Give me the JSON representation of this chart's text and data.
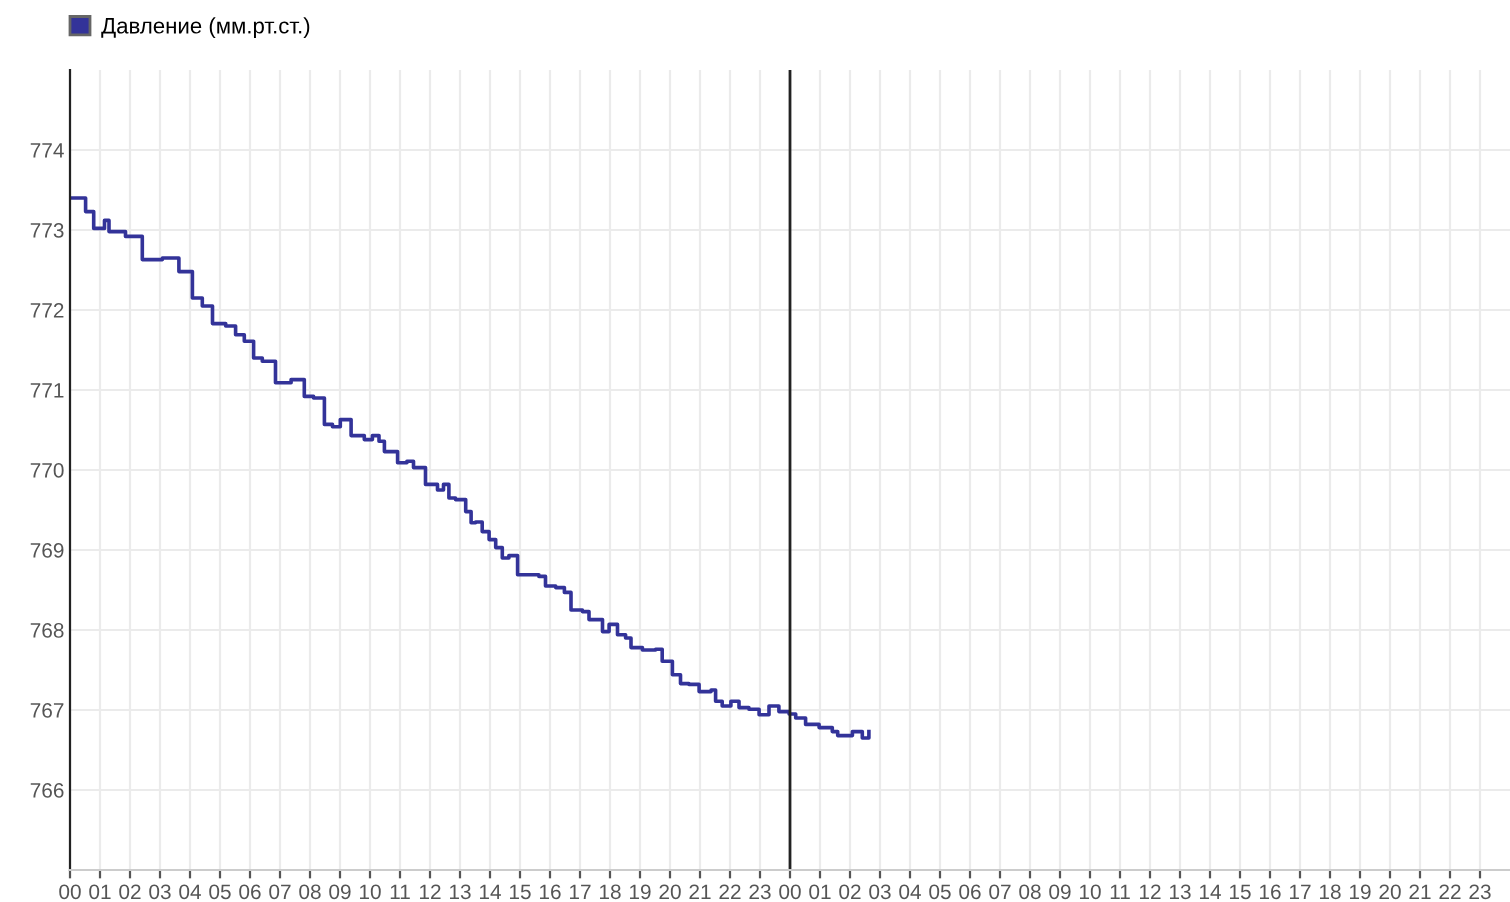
{
  "chart_data": {
    "type": "step",
    "series": [
      {
        "name": "Давление (мм.рт.ст.)",
        "color": "#333399",
        "x": [
          0.03,
          0.52,
          0.79,
          1.15,
          1.3,
          1.85,
          2.41,
          3.08,
          3.63,
          4.08,
          4.41,
          4.75,
          5.19,
          5.52,
          5.81,
          6.12,
          6.41,
          6.85,
          7.37,
          7.81,
          8.12,
          8.48,
          8.75,
          9.01,
          9.37,
          9.81,
          10.08,
          10.3,
          10.48,
          10.92,
          11.23,
          11.45,
          11.85,
          12.08,
          12.25,
          12.45,
          12.63,
          12.85,
          13.19,
          13.37,
          13.52,
          13.74,
          13.97,
          14.19,
          14.41,
          14.63,
          14.92,
          15.63,
          15.85,
          16.19,
          16.48,
          16.7,
          17.08,
          17.3,
          17.59,
          17.75,
          17.97,
          18.25,
          18.52,
          18.7,
          19.08,
          19.52,
          19.74,
          20.08,
          20.35,
          20.63,
          20.97,
          21.37,
          21.52,
          21.74,
          22.03,
          22.3,
          22.63,
          22.97,
          23.3,
          23.63,
          23.97,
          24.19,
          24.52,
          24.97,
          25.41,
          25.59,
          26.08,
          26.41,
          26.63
        ],
        "values": [
          773.4,
          773.23,
          773.02,
          773.12,
          772.98,
          772.92,
          772.63,
          772.65,
          772.48,
          772.15,
          772.05,
          771.83,
          771.8,
          771.69,
          771.61,
          771.4,
          771.36,
          771.09,
          771.13,
          770.92,
          770.9,
          770.57,
          770.54,
          770.63,
          770.43,
          770.38,
          770.43,
          770.36,
          770.23,
          770.09,
          770.11,
          770.03,
          769.82,
          769.82,
          769.75,
          769.82,
          769.65,
          769.63,
          769.48,
          769.34,
          769.35,
          769.23,
          769.13,
          769.03,
          768.9,
          768.93,
          768.69,
          768.67,
          768.55,
          768.53,
          768.47,
          768.25,
          768.23,
          768.13,
          768.13,
          767.98,
          768.07,
          767.94,
          767.9,
          767.78,
          767.75,
          767.76,
          767.61,
          767.44,
          767.33,
          767.32,
          767.23,
          767.25,
          767.11,
          767.05,
          767.11,
          767.03,
          767.01,
          766.94,
          767.05,
          766.98,
          766.95,
          766.9,
          766.82,
          766.78,
          766.73,
          766.68,
          766.73,
          766.65,
          766.73
        ]
      }
    ],
    "xlim": [
      0,
      48
    ],
    "xticks": [
      {
        "value": 0,
        "label": "00"
      },
      {
        "value": 1,
        "label": "01"
      },
      {
        "value": 2,
        "label": "02"
      },
      {
        "value": 3,
        "label": "03"
      },
      {
        "value": 4,
        "label": "04"
      },
      {
        "value": 5,
        "label": "05"
      },
      {
        "value": 6,
        "label": "06"
      },
      {
        "value": 7,
        "label": "07"
      },
      {
        "value": 8,
        "label": "08"
      },
      {
        "value": 9,
        "label": "09"
      },
      {
        "value": 10,
        "label": "10"
      },
      {
        "value": 11,
        "label": "11"
      },
      {
        "value": 12,
        "label": "12"
      },
      {
        "value": 13,
        "label": "13"
      },
      {
        "value": 14,
        "label": "14"
      },
      {
        "value": 15,
        "label": "15"
      },
      {
        "value": 16,
        "label": "16"
      },
      {
        "value": 17,
        "label": "17"
      },
      {
        "value": 18,
        "label": "18"
      },
      {
        "value": 19,
        "label": "19"
      },
      {
        "value": 20,
        "label": "20"
      },
      {
        "value": 21,
        "label": "21"
      },
      {
        "value": 22,
        "label": "22"
      },
      {
        "value": 23,
        "label": "23"
      },
      {
        "value": 24,
        "label": "00"
      },
      {
        "value": 25,
        "label": "01"
      },
      {
        "value": 26,
        "label": "02"
      },
      {
        "value": 27,
        "label": "03"
      },
      {
        "value": 28,
        "label": "04"
      },
      {
        "value": 29,
        "label": "05"
      },
      {
        "value": 30,
        "label": "06"
      },
      {
        "value": 31,
        "label": "07"
      },
      {
        "value": 32,
        "label": "08"
      },
      {
        "value": 33,
        "label": "09"
      },
      {
        "value": 34,
        "label": "10"
      },
      {
        "value": 35,
        "label": "11"
      },
      {
        "value": 36,
        "label": "12"
      },
      {
        "value": 37,
        "label": "13"
      },
      {
        "value": 38,
        "label": "14"
      },
      {
        "value": 39,
        "label": "15"
      },
      {
        "value": 40,
        "label": "16"
      },
      {
        "value": 41,
        "label": "17"
      },
      {
        "value": 42,
        "label": "18"
      },
      {
        "value": 43,
        "label": "19"
      },
      {
        "value": 44,
        "label": "20"
      },
      {
        "value": 45,
        "label": "21"
      },
      {
        "value": 46,
        "label": "22"
      },
      {
        "value": 47,
        "label": "23"
      }
    ],
    "ylim": [
      765,
      775
    ],
    "yticks": [
      766,
      767,
      768,
      769,
      770,
      771,
      772,
      773,
      774
    ],
    "ref_lines": [
      {
        "axis": "x",
        "value": 24,
        "color": "#222222"
      }
    ],
    "grid": true,
    "legend": "top left"
  }
}
